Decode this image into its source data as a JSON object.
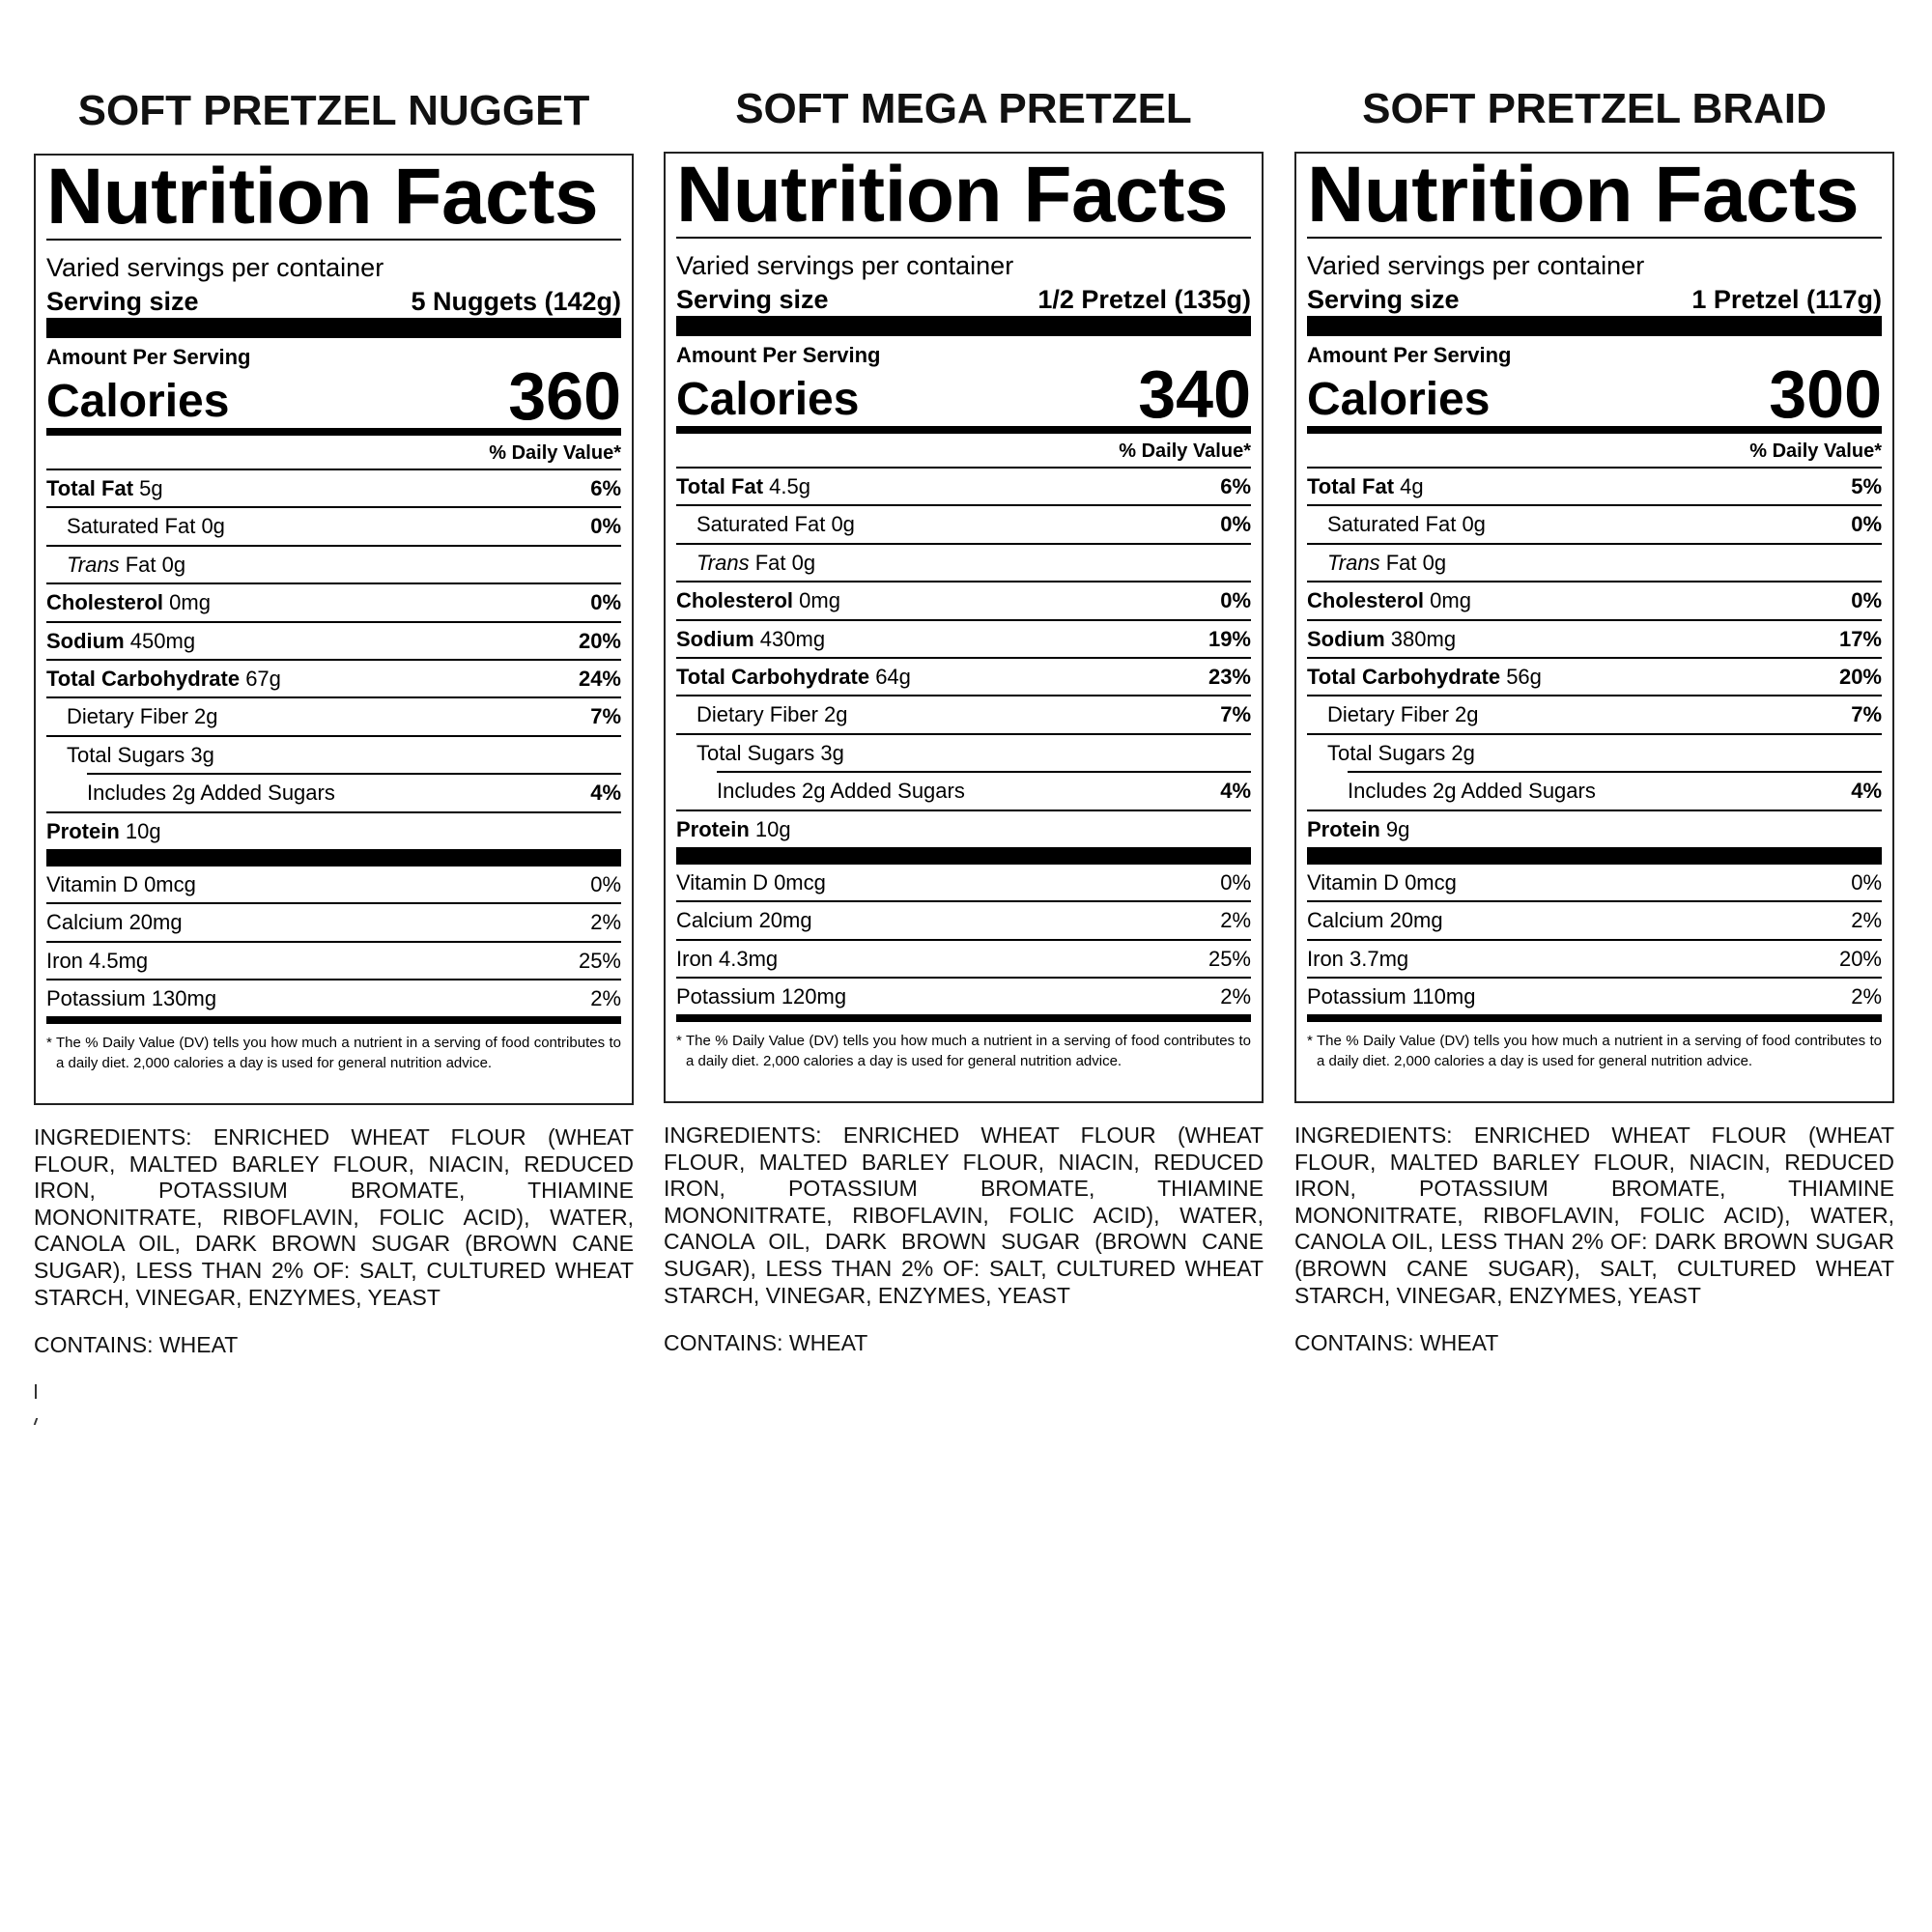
{
  "panels": [
    {
      "title": "SOFT PRETZEL NUGGET",
      "header": "Nutrition Facts",
      "servings_per_container": "Varied servings per container",
      "serving_size_label": "Serving size",
      "serving_size_value": "5 Nuggets (142g)",
      "amount_per_serving": "Amount Per Serving",
      "calories_label": "Calories",
      "calories": "360",
      "dv_header": "% Daily Value*",
      "nutrients": [
        {
          "name": "Total Fat",
          "amount": "5g",
          "dv": "6%",
          "bold": true,
          "indent": 0
        },
        {
          "name": "Saturated Fat",
          "amount": "0g",
          "dv": "0%",
          "bold": false,
          "indent": 1
        },
        {
          "italic": "Trans",
          "name": "Fat",
          "amount": "0g",
          "dv": "",
          "bold": false,
          "indent": 1
        },
        {
          "name": "Cholesterol",
          "amount": "0mg",
          "dv": "0%",
          "bold": true,
          "indent": 0
        },
        {
          "name": "Sodium",
          "amount": "450mg",
          "dv": "20%",
          "bold": true,
          "indent": 0
        },
        {
          "name": "Total Carbohydrate",
          "amount": "67g",
          "dv": "24%",
          "bold": true,
          "indent": 0
        },
        {
          "name": "Dietary Fiber",
          "amount": "2g",
          "dv": "7%",
          "bold": false,
          "indent": 1
        },
        {
          "name": "Total Sugars",
          "amount": "3g",
          "dv": "",
          "bold": false,
          "indent": 1
        },
        {
          "name": "Includes 2g Added Sugars",
          "amount": "",
          "dv": "4%",
          "bold": false,
          "indent": 2
        },
        {
          "name": "Protein",
          "amount": "10g",
          "dv": "",
          "bold": true,
          "indent": 0
        }
      ],
      "vitamins": [
        {
          "name": "Vitamin D 0mcg",
          "dv": "0%"
        },
        {
          "name": "Calcium 20mg",
          "dv": "2%"
        },
        {
          "name": "Iron 4.5mg",
          "dv": "25%"
        },
        {
          "name": "Potassium 130mg",
          "dv": "2%"
        }
      ],
      "footnote": "* The % Daily Value (DV) tells you how much a nutrient in a serving of food contributes to a daily diet. 2,000 calories a day is used for general nutrition advice.",
      "ingredients": "INGREDIENTS: ENRICHED WHEAT FLOUR (WHEAT FLOUR, MALTED BARLEY FLOUR, NIACIN, REDUCED IRON, POTASSIUM BROMATE, THIAMINE MONONITRATE, RIBOFLAVIN, FOLIC ACID), WATER, CANOLA OIL, DARK BROWN SUGAR (BROWN CANE SUGAR), LESS THAN 2% OF: SALT, CULTURED WHEAT STARCH, VINEGAR, ENZYMES, YEAST",
      "contains": "CONTAINS: WHEAT"
    },
    {
      "title": "SOFT MEGA PRETZEL",
      "header": "Nutrition Facts",
      "servings_per_container": "Varied servings per container",
      "serving_size_label": "Serving size",
      "serving_size_value": "1/2 Pretzel (135g)",
      "amount_per_serving": "Amount Per Serving",
      "calories_label": "Calories",
      "calories": "340",
      "dv_header": "% Daily Value*",
      "nutrients": [
        {
          "name": "Total Fat",
          "amount": "4.5g",
          "dv": "6%",
          "bold": true,
          "indent": 0
        },
        {
          "name": "Saturated Fat",
          "amount": "0g",
          "dv": "0%",
          "bold": false,
          "indent": 1
        },
        {
          "italic": "Trans",
          "name": "Fat",
          "amount": "0g",
          "dv": "",
          "bold": false,
          "indent": 1
        },
        {
          "name": "Cholesterol",
          "amount": "0mg",
          "dv": "0%",
          "bold": true,
          "indent": 0
        },
        {
          "name": "Sodium",
          "amount": "430mg",
          "dv": "19%",
          "bold": true,
          "indent": 0
        },
        {
          "name": "Total Carbohydrate",
          "amount": "64g",
          "dv": "23%",
          "bold": true,
          "indent": 0
        },
        {
          "name": "Dietary Fiber",
          "amount": "2g",
          "dv": "7%",
          "bold": false,
          "indent": 1
        },
        {
          "name": "Total Sugars",
          "amount": "3g",
          "dv": "",
          "bold": false,
          "indent": 1
        },
        {
          "name": "Includes 2g Added Sugars",
          "amount": "",
          "dv": "4%",
          "bold": false,
          "indent": 2
        },
        {
          "name": "Protein",
          "amount": "10g",
          "dv": "",
          "bold": true,
          "indent": 0
        }
      ],
      "vitamins": [
        {
          "name": "Vitamin D 0mcg",
          "dv": "0%"
        },
        {
          "name": "Calcium 20mg",
          "dv": "2%"
        },
        {
          "name": "Iron 4.3mg",
          "dv": "25%"
        },
        {
          "name": "Potassium 120mg",
          "dv": "2%"
        }
      ],
      "footnote": "* The % Daily Value (DV) tells you how much a nutrient in a serving of food contributes to a daily diet. 2,000 calories a day is used for general nutrition advice.",
      "ingredients": "INGREDIENTS: ENRICHED WHEAT FLOUR (WHEAT FLOUR, MALTED BARLEY FLOUR, NIACIN, REDUCED IRON, POTASSIUM BROMATE, THIAMINE MONONITRATE, RIBOFLAVIN, FOLIC ACID), WATER, CANOLA OIL, DARK BROWN SUGAR (BROWN CANE SUGAR), LESS THAN 2% OF: SALT, CULTURED WHEAT STARCH, VINEGAR, ENZYMES, YEAST",
      "contains": "CONTAINS: WHEAT"
    },
    {
      "title": "SOFT PRETZEL BRAID",
      "header": "Nutrition Facts",
      "servings_per_container": "Varied servings per container",
      "serving_size_label": "Serving size",
      "serving_size_value": "1 Pretzel (117g)",
      "amount_per_serving": "Amount Per Serving",
      "calories_label": "Calories",
      "calories": "300",
      "dv_header": "% Daily Value*",
      "nutrients": [
        {
          "name": "Total Fat",
          "amount": "4g",
          "dv": "5%",
          "bold": true,
          "indent": 0
        },
        {
          "name": "Saturated Fat",
          "amount": "0g",
          "dv": "0%",
          "bold": false,
          "indent": 1
        },
        {
          "italic": "Trans",
          "name": "Fat",
          "amount": "0g",
          "dv": "",
          "bold": false,
          "indent": 1
        },
        {
          "name": "Cholesterol",
          "amount": "0mg",
          "dv": "0%",
          "bold": true,
          "indent": 0
        },
        {
          "name": "Sodium",
          "amount": "380mg",
          "dv": "17%",
          "bold": true,
          "indent": 0
        },
        {
          "name": "Total Carbohydrate",
          "amount": "56g",
          "dv": "20%",
          "bold": true,
          "indent": 0
        },
        {
          "name": "Dietary Fiber",
          "amount": "2g",
          "dv": "7%",
          "bold": false,
          "indent": 1
        },
        {
          "name": "Total Sugars",
          "amount": "2g",
          "dv": "",
          "bold": false,
          "indent": 1
        },
        {
          "name": "Includes 2g Added Sugars",
          "amount": "",
          "dv": "4%",
          "bold": false,
          "indent": 2
        },
        {
          "name": "Protein",
          "amount": "9g",
          "dv": "",
          "bold": true,
          "indent": 0
        }
      ],
      "vitamins": [
        {
          "name": "Vitamin D 0mcg",
          "dv": "0%"
        },
        {
          "name": "Calcium 20mg",
          "dv": "2%"
        },
        {
          "name": "Iron 3.7mg",
          "dv": "20%"
        },
        {
          "name": "Potassium 110mg",
          "dv": "2%"
        }
      ],
      "footnote": "* The % Daily Value (DV) tells you how much a nutrient in a serving of food contributes to a daily diet. 2,000 calories a day is used for general nutrition advice.",
      "ingredients": "INGREDIENTS: ENRICHED WHEAT FLOUR (WHEAT FLOUR, MALTED BARLEY FLOUR, NIACIN, REDUCED IRON, POTASSIUM BROMATE, THIAMINE MONONITRATE, RIBOFLAVIN, FOLIC ACID), WATER, CANOLA OIL, LESS THAN 2% OF: DARK BROWN SUGAR (BROWN CANE SUGAR), SALT, CULTURED WHEAT STARCH, VINEGAR, ENZYMES, YEAST",
      "contains": "CONTAINS: WHEAT"
    }
  ]
}
